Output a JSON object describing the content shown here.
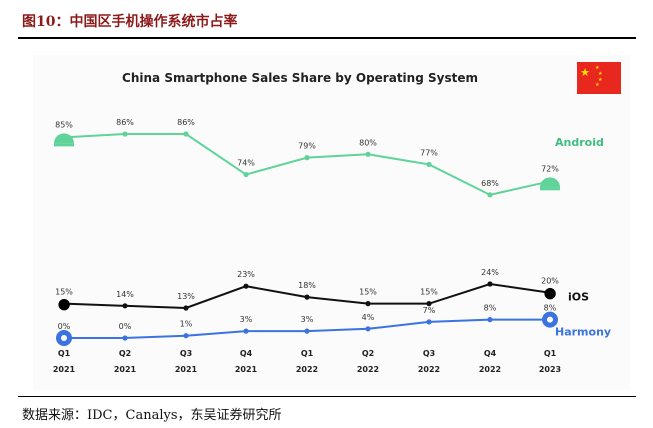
{
  "figure": {
    "label": "图10：中国区手机操作系统市占率",
    "source": "数据来源：IDC，Canalys，东吴证券研究所"
  },
  "chart_data": {
    "type": "line",
    "title": "China Smartphone Sales Share by Operating System",
    "categories": [
      {
        "quarter": "Q1",
        "year": "2021"
      },
      {
        "quarter": "Q2",
        "year": "2021"
      },
      {
        "quarter": "Q3",
        "year": "2021"
      },
      {
        "quarter": "Q4",
        "year": "2021"
      },
      {
        "quarter": "Q1",
        "year": "2022"
      },
      {
        "quarter": "Q2",
        "year": "2022"
      },
      {
        "quarter": "Q3",
        "year": "2022"
      },
      {
        "quarter": "Q4",
        "year": "2022"
      },
      {
        "quarter": "Q1",
        "year": "2023"
      }
    ],
    "series": [
      {
        "name": "Android",
        "values": [
          85,
          86,
          86,
          74,
          79,
          80,
          77,
          68,
          72
        ],
        "labels": [
          "85%",
          "86%",
          "86%",
          "74%",
          "79%",
          "80%",
          "77%",
          "68%",
          "72%"
        ],
        "color": "#5fd39a",
        "label_color": "#3fbf7f",
        "icon": "android-icon"
      },
      {
        "name": "iOS",
        "values": [
          15,
          14,
          13,
          23,
          18,
          15,
          15,
          24,
          20
        ],
        "labels": [
          "15%",
          "14%",
          "13%",
          "23%",
          "18%",
          "15%",
          "15%",
          "24%",
          "20%"
        ],
        "color": "#111111",
        "label_color": "#111111",
        "icon": "apple-icon"
      },
      {
        "name": "Harmony",
        "values": [
          0,
          0,
          1,
          3,
          3,
          4,
          7,
          8,
          8
        ],
        "labels": [
          "0%",
          "0%",
          "1%",
          "3%",
          "3%",
          "4%",
          "7%",
          "8%",
          "8%"
        ],
        "color": "#3b73e0",
        "label_color": "#3b73e0",
        "icon": "harmony-icon"
      }
    ],
    "grid": false,
    "legend": "right end labels"
  },
  "flag": {
    "icon": "china-flag-icon",
    "color": "#e8281e",
    "star_color": "#ffde00"
  }
}
